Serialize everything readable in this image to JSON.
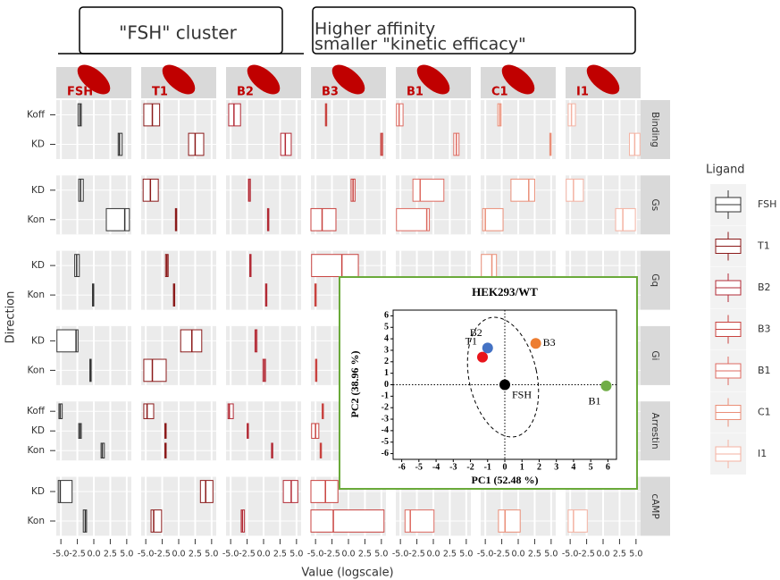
{
  "chart_data": [
    {
      "type": "boxplot",
      "annotations": [
        [
          "\"FSH\" cluster"
        ],
        [
          "Higher affinity",
          "smaller \"kinetic efficacy\""
        ]
      ],
      "x_label": "Value (logscale)",
      "y_label": "Direction",
      "legend_title": "Ligand",
      "xlim": [
        -5.7,
        5.7
      ],
      "xticks": [
        {
          "value": -5,
          "label": "-5.0"
        },
        {
          "value": -2.5,
          "label": "-2.5"
        },
        {
          "value": 0,
          "label": "0.0"
        },
        {
          "value": 2.5,
          "label": "2.5"
        },
        {
          "value": 5,
          "label": "5.0"
        }
      ],
      "grid": true,
      "ligands": [
        {
          "name": "FSH",
          "color": "#333333"
        },
        {
          "name": "T1",
          "color": "#8b1a1a"
        },
        {
          "name": "B2",
          "color": "#b22a35"
        },
        {
          "name": "B3",
          "color": "#c8423f"
        },
        {
          "name": "B1",
          "color": "#dd6a60"
        },
        {
          "name": "C1",
          "color": "#ea8f78"
        },
        {
          "name": "I1",
          "color": "#f4b2a2"
        }
      ],
      "facets": [
        {
          "name": "Binding",
          "directions": [
            "Koff",
            "KD"
          ],
          "boxes": [
            [
              [
                -2.4,
                -2.1,
                -1.9
              ],
              [
                3.7,
                3.9,
                4.3
              ]
            ],
            [
              [
                -5.3,
                -4.0,
                -2.9
              ],
              [
                1.5,
                2.5,
                3.8
              ]
            ],
            [
              [
                -5.3,
                -4.5,
                -3.5
              ],
              [
                2.6,
                3.3,
                4.2
              ]
            ],
            [
              [
                -3.5,
                -3.4,
                -3.3
              ],
              [
                4.9,
                5.0,
                5.2
              ]
            ],
            [
              [
                -5.6,
                -5.2,
                -4.6
              ],
              [
                3.1,
                3.5,
                3.9
              ]
            ],
            [
              [
                -3.1,
                -2.8,
                -2.6
              ],
              [
                4.8,
                4.9,
                5.0
              ]
            ],
            [
              [
                -5.3,
                -4.8,
                -4.2
              ],
              [
                4.0,
                4.8,
                5.6
              ]
            ]
          ]
        },
        {
          "name": "Gs",
          "directions": [
            "KD",
            "Kon"
          ],
          "boxes": [
            [
              [
                -2.3,
                -2.0,
                -1.6
              ],
              [
                1.9,
                4.7,
                5.4
              ]
            ],
            [
              [
                -5.4,
                -4.3,
                -3.1
              ],
              [
                -0.5,
                -0.4,
                -0.3
              ]
            ],
            [
              [
                -2.3,
                -2.2,
                -2.0
              ],
              [
                0.6,
                0.7,
                0.8
              ]
            ],
            [
              [
                0.4,
                0.7,
                1.0
              ],
              [
                -5.7,
                -4.0,
                -1.9
              ]
            ],
            [
              [
                -3.1,
                -2.0,
                1.6
              ],
              [
                -5.6,
                -1.0,
                -0.6
              ]
            ],
            [
              [
                -1.1,
                1.6,
                2.5
              ],
              [
                -5.4,
                -5.0,
                -2.3
              ]
            ],
            [
              [
                -5.6,
                -4.5,
                -3.0
              ],
              [
                1.9,
                3.0,
                4.9
              ]
            ]
          ]
        },
        {
          "name": "Gq",
          "directions": [
            "KD",
            "Kon"
          ],
          "boxes": [
            [
              [
                -2.9,
                -2.6,
                -2.2
              ],
              [
                -0.2,
                -0.1,
                0.0
              ]
            ],
            [
              [
                -2.0,
                -1.8,
                -1.6
              ],
              [
                -0.8,
                -0.7,
                -0.6
              ]
            ],
            [
              [
                -2.1,
                -2.0,
                -1.9
              ],
              [
                0.3,
                0.4,
                0.5
              ]
            ],
            [
              [
                -5.6,
                -1.0,
                1.5
              ],
              [
                -5.1,
                -5.0,
                -4.9
              ]
            ],
            [
              null,
              null
            ],
            [
              [
                -5.6,
                -4.0,
                -3.3
              ],
              null
            ],
            [
              null,
              null
            ]
          ]
        },
        {
          "name": "Gi",
          "directions": [
            "KD",
            "Kon"
          ],
          "boxes": [
            [
              [
                -5.6,
                -2.7,
                -2.4
              ],
              [
                -0.6,
                -0.5,
                -0.4
              ]
            ],
            [
              [
                0.3,
                2.0,
                3.5
              ],
              [
                -5.3,
                -4.0,
                -1.9
              ]
            ],
            [
              [
                -1.3,
                -1.2,
                -1.0
              ],
              [
                -0.1,
                0.1,
                0.3
              ]
            ],
            [
              null,
              [
                -5.0,
                -4.9,
                -4.8
              ]
            ],
            [
              null,
              null
            ],
            [
              null,
              null
            ],
            [
              null,
              null
            ]
          ]
        },
        {
          "name": "Arrestin",
          "directions": [
            "Koff",
            "KD",
            "Kon"
          ],
          "boxes": [
            [
              [
                -5.3,
                -5.1,
                -4.8
              ],
              [
                -2.3,
                -2.1,
                -1.9
              ],
              [
                1.1,
                1.3,
                1.6
              ]
            ],
            [
              [
                -5.3,
                -4.8,
                -3.8
              ],
              [
                -2.1,
                -2.0,
                -1.9
              ],
              [
                -2.1,
                -2.0,
                -1.9
              ]
            ],
            [
              [
                -5.4,
                -5.2,
                -4.6
              ],
              [
                -2.5,
                -2.4,
                -2.3
              ],
              [
                1.2,
                1.3,
                1.4
              ]
            ],
            [
              [
                -4.0,
                -3.9,
                -3.8
              ],
              [
                -5.6,
                -5.0,
                -4.5
              ],
              [
                -4.3,
                -4.2,
                -4.1
              ]
            ],
            [
              null,
              null,
              null
            ],
            [
              null,
              null,
              null
            ],
            [
              null,
              null,
              null
            ]
          ]
        },
        {
          "name": "cAMP",
          "directions": [
            "KD",
            "Kon"
          ],
          "boxes": [
            [
              [
                -5.4,
                -5.1,
                -3.3
              ],
              [
                -1.6,
                -1.3,
                -1.1
              ]
            ],
            [
              [
                3.3,
                4.1,
                5.2
              ],
              [
                -4.2,
                -3.8,
                -2.6
              ]
            ],
            [
              [
                3.0,
                4.2,
                5.2
              ],
              [
                -3.4,
                -3.2,
                -2.9
              ]
            ],
            [
              [
                -5.7,
                -3.5,
                -1.6
              ],
              [
                -5.7,
                -2.3,
                5.4
              ]
            ],
            [
              null,
              [
                -4.3,
                -3.5,
                0.1
              ]
            ],
            [
              null,
              [
                -3.0,
                -2.0,
                0.3
              ]
            ],
            [
              null,
              [
                -5.3,
                -4.5,
                -2.4
              ]
            ]
          ]
        }
      ]
    },
    {
      "type": "scatter",
      "title": "HEK293/WT",
      "x_label": "PC1 (52.48 %)",
      "y_label": "PC2 (38.96 %)",
      "xlim": [
        -6.5,
        6.5
      ],
      "ylim": [
        -6.5,
        6.5
      ],
      "xticks": [
        -6,
        -5,
        -4,
        -3,
        -2,
        -1,
        0,
        1,
        2,
        3,
        4,
        5,
        6
      ],
      "yticks": [
        -6,
        -5,
        -4,
        -3,
        -2,
        -1,
        0,
        1,
        2,
        3,
        4,
        5,
        6
      ],
      "labels": [
        "FSH",
        "T1",
        "B2",
        "B3",
        "B1"
      ],
      "x": [
        0,
        -1.3,
        -1.0,
        1.8,
        5.9
      ],
      "values": [
        0,
        2.4,
        3.2,
        3.6,
        -0.1
      ],
      "colors": [
        "#000000",
        "#e8141b",
        "#4472c4",
        "#ed7d31",
        "#70ad47"
      ]
    }
  ]
}
